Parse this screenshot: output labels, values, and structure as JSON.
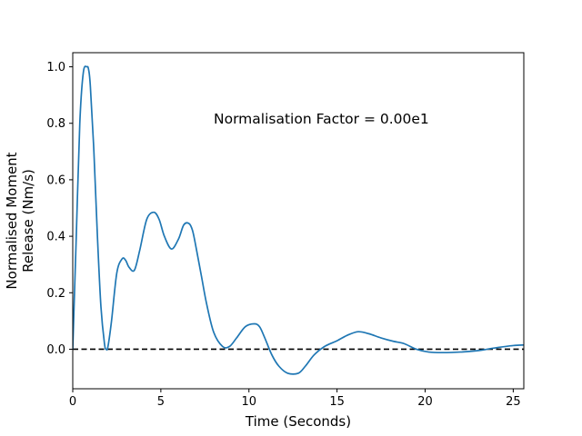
{
  "chart_data": {
    "type": "line",
    "title": "",
    "xlabel": "Time (Seconds)",
    "ylabel_lines": [
      "Normalised Moment",
      "Release (Nm/s)"
    ],
    "xlim": [
      0,
      25.6
    ],
    "ylim": [
      -0.14,
      1.05
    ],
    "xticks": [
      0,
      5,
      10,
      15,
      20,
      25
    ],
    "yticks": [
      0.0,
      0.2,
      0.4,
      0.6,
      0.8,
      1.0
    ],
    "xtick_labels": [
      "0",
      "5",
      "10",
      "15",
      "20",
      "25"
    ],
    "ytick_labels": [
      "0.0",
      "0.2",
      "0.4",
      "0.6",
      "0.8",
      "1.0"
    ],
    "grid": false,
    "annotation": {
      "text": "Normalisation Factor = 0.00e1",
      "x": 8.0,
      "y": 0.81
    },
    "reference_line": {
      "y": 0.0,
      "style": "dashed",
      "color": "#000000"
    },
    "series": [
      {
        "color": "#1f77b4",
        "x": [
          0,
          0.2,
          0.4,
          0.6,
          0.8,
          0.9,
          1.0,
          1.2,
          1.4,
          1.6,
          1.8,
          1.9,
          2.0,
          2.2,
          2.5,
          2.8,
          3.0,
          3.2,
          3.5,
          3.8,
          4.2,
          4.6,
          4.9,
          5.2,
          5.6,
          6.0,
          6.3,
          6.6,
          6.8,
          7.0,
          7.3,
          7.6,
          8.0,
          8.5,
          8.9,
          9.3,
          9.8,
          10.3,
          10.6,
          10.9,
          11.3,
          11.7,
          12.2,
          12.8,
          13.2,
          13.7,
          14.3,
          15.0,
          15.6,
          16.2,
          16.8,
          17.5,
          18.2,
          18.8,
          19.5,
          20.2,
          21.0,
          22.0,
          23.0,
          24.0,
          25.0,
          25.6
        ],
        "y": [
          0.0,
          0.4,
          0.8,
          0.98,
          1.0,
          0.99,
          0.93,
          0.7,
          0.4,
          0.15,
          0.02,
          0.0,
          0.01,
          0.1,
          0.27,
          0.32,
          0.315,
          0.29,
          0.28,
          0.35,
          0.46,
          0.485,
          0.46,
          0.4,
          0.355,
          0.39,
          0.44,
          0.445,
          0.42,
          0.36,
          0.26,
          0.16,
          0.06,
          0.01,
          0.01,
          0.04,
          0.08,
          0.09,
          0.08,
          0.04,
          -0.02,
          -0.06,
          -0.085,
          -0.085,
          -0.06,
          -0.02,
          0.01,
          0.03,
          0.05,
          0.062,
          0.055,
          0.04,
          0.028,
          0.02,
          0.0,
          -0.01,
          -0.012,
          -0.01,
          -0.005,
          0.005,
          0.013,
          0.015
        ]
      }
    ]
  }
}
